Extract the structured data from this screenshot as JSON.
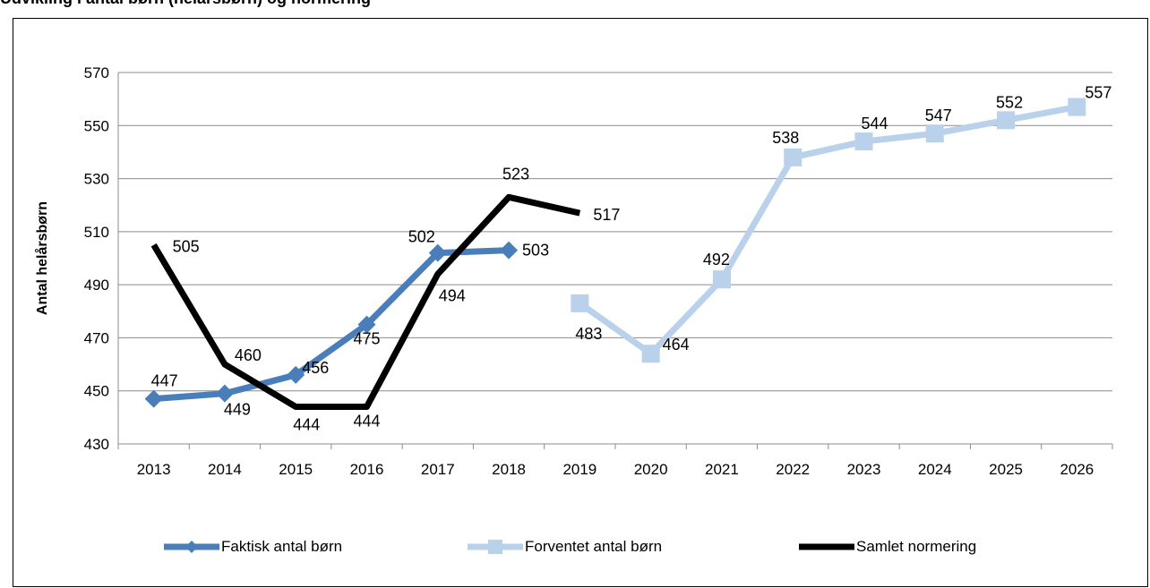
{
  "header_fragment": "Udvikling i antal børn (helårsbørn) og normering",
  "chart_data": {
    "type": "line",
    "categories": [
      "2013",
      "2014",
      "2015",
      "2016",
      "2017",
      "2018",
      "2019",
      "2020",
      "2021",
      "2022",
      "2023",
      "2024",
      "2025",
      "2026"
    ],
    "ylabel": "Antal helårsbørn",
    "ylim": [
      430,
      570
    ],
    "yticks": [
      430,
      450,
      470,
      490,
      510,
      530,
      550,
      570
    ],
    "grid": "horizontal",
    "legend_position": "bottom",
    "series": [
      {
        "name": "Faktisk antal børn",
        "color": "#4a7ebb",
        "marker": "diamond",
        "values": [
          447,
          449,
          456,
          475,
          502,
          503,
          null,
          null,
          null,
          null,
          null,
          null,
          null,
          null
        ]
      },
      {
        "name": "Forventet antal børn",
        "color": "#b9d1ea",
        "marker": "square",
        "values": [
          null,
          null,
          null,
          null,
          null,
          null,
          483,
          464,
          492,
          538,
          544,
          547,
          552,
          557
        ]
      },
      {
        "name": "Samlet normering",
        "color": "#000000",
        "marker": "none",
        "values": [
          505,
          460,
          444,
          444,
          494,
          523,
          517,
          null,
          null,
          null,
          null,
          null,
          null,
          null
        ]
      }
    ]
  }
}
